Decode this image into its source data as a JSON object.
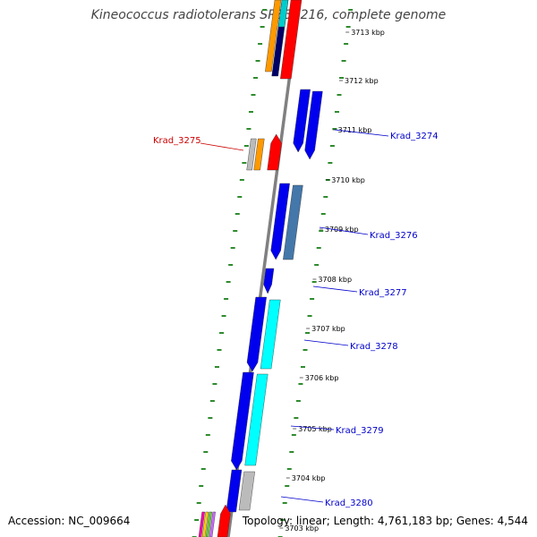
{
  "title": "Kineococcus radiotolerans SRS30216, complete genome",
  "accession_text": "Accession: NC_009664",
  "stats_text": "Topology: linear; Length: 4,761,183 bp; Genes: 4,544",
  "colors": {
    "backbone": "#808080",
    "tick_dots": "#2e8b2e",
    "label_forward": "#cc0000",
    "label_reverse": "#0000cc"
  },
  "ruler": [
    {
      "label": "3713 kbp"
    },
    {
      "label": "3712 kbp"
    },
    {
      "label": "3711 kbp"
    },
    {
      "label": "3710 kbp"
    },
    {
      "label": "3709 kbp"
    },
    {
      "label": "3708 kbp"
    },
    {
      "label": "3707 kbp"
    },
    {
      "label": "3706 kbp"
    },
    {
      "label": "3705 kbp"
    },
    {
      "label": "3704 kbp"
    },
    {
      "label": "3703 kbp"
    }
  ],
  "gene_labels": [
    {
      "text": "Krad_3275",
      "strand": "forward"
    },
    {
      "text": "Krad_3274",
      "strand": "reverse"
    },
    {
      "text": "Krad_3276",
      "strand": "reverse"
    },
    {
      "text": "Krad_3277",
      "strand": "reverse"
    },
    {
      "text": "Krad_3278",
      "strand": "reverse"
    },
    {
      "text": "Krad_3279",
      "strand": "reverse"
    },
    {
      "text": "Krad_3280",
      "strand": "reverse"
    }
  ]
}
